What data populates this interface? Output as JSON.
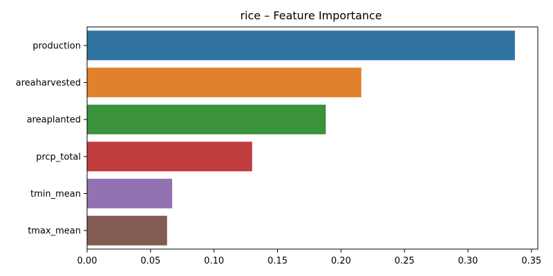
{
  "chart_data": {
    "type": "bar",
    "orientation": "horizontal",
    "title": "rice – Feature Importance",
    "xlabel": "",
    "ylabel": "",
    "categories": [
      "production",
      "areaharvested",
      "areaplanted",
      "prcp_total",
      "tmin_mean",
      "tmax_mean"
    ],
    "values": [
      0.337,
      0.216,
      0.188,
      0.13,
      0.067,
      0.063
    ],
    "colors": [
      "#3274a1",
      "#e1812c",
      "#3a923a",
      "#c03d3e",
      "#9372b2",
      "#845b53"
    ],
    "xlim": [
      0.0,
      0.355
    ],
    "xticks": [
      "0.00",
      "0.05",
      "0.10",
      "0.15",
      "0.20",
      "0.25",
      "0.30",
      "0.35"
    ],
    "xtick_values": [
      0.0,
      0.05,
      0.1,
      0.15,
      0.2,
      0.25,
      0.3,
      0.35
    ],
    "grid": false,
    "legend": "none"
  }
}
